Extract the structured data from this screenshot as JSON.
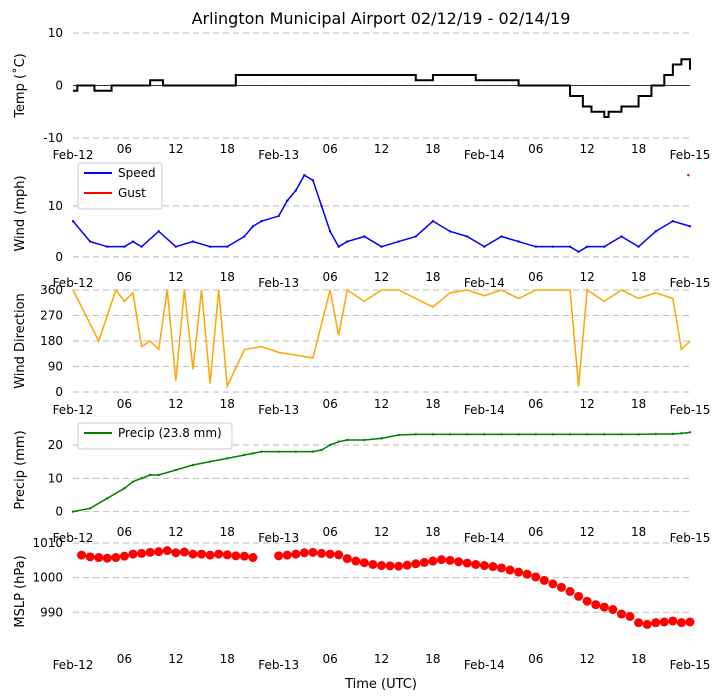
{
  "colors": {
    "temp": "#000000",
    "speed": "#0000ff",
    "gust": "#ff0000",
    "direction": "#ffa500",
    "precip": "#008000",
    "mslp": "#ff0000",
    "grid": "#bbbbbb"
  },
  "chart_data": {
    "title": "Arlington Municipal Airport 02/12/19 - 02/14/19",
    "xlabel": "Time (UTC)",
    "type": "line",
    "x_ticks": [
      "Feb-12",
      "06",
      "12",
      "18",
      "Feb-13",
      "06",
      "12",
      "18",
      "Feb-14",
      "06",
      "12",
      "18",
      "Feb-15"
    ],
    "x_unit": "hours since 2019-02-12 00:00 UTC",
    "x_range": [
      0,
      72
    ],
    "panels": [
      {
        "name": "temp",
        "type": "line",
        "ylabel": "Temp ($^\\circ$C)",
        "ylabel_display": "Temp (˚C)",
        "ylim": [
          -10,
          10
        ],
        "yticks": [
          -10,
          0,
          10
        ],
        "zero_line": true,
        "series": [
          {
            "name": "Temp",
            "x": [
              0,
              0.5,
              2,
              2.5,
              4.5,
              8,
              9,
              10.5,
              16,
              19,
              24,
              28,
              33,
              40,
              42,
              47,
              49,
              52,
              56,
              58,
              59.5,
              60.5,
              61.5,
              62,
              62.5,
              64,
              66,
              67.5,
              69,
              70,
              71,
              72
            ],
            "values": [
              -1,
              0,
              0,
              -1,
              0,
              0,
              1,
              0,
              0,
              2,
              2,
              2,
              2,
              1,
              2,
              1,
              1,
              0,
              0,
              -2,
              -4,
              -5,
              -5,
              -6,
              -5,
              -4,
              -2,
              0,
              2,
              4,
              5,
              3
            ]
          }
        ]
      },
      {
        "name": "wind",
        "type": "line",
        "ylabel": "Wind (mph)",
        "ylim": [
          -1,
          18
        ],
        "yticks": [
          0,
          10
        ],
        "legend": [
          "Speed",
          "Gust"
        ],
        "series": [
          {
            "name": "Speed",
            "x": [
              0,
              2,
              4,
              6,
              7,
              8,
              10,
              12,
              14,
              16,
              18,
              20,
              21,
              22,
              24,
              25,
              26,
              27,
              28,
              29,
              30,
              31,
              32,
              34,
              36,
              38,
              40,
              42,
              44,
              46,
              48,
              50,
              52,
              54,
              56,
              58,
              59,
              60,
              62,
              64,
              66,
              68,
              70,
              72
            ],
            "values": [
              7,
              3,
              2,
              2,
              3,
              2,
              5,
              2,
              3,
              2,
              2,
              4,
              6,
              7,
              8,
              11,
              13,
              16,
              15,
              10,
              5,
              2,
              3,
              4,
              2,
              3,
              4,
              7,
              5,
              4,
              2,
              4,
              3,
              2,
              2,
              2,
              1,
              2,
              2,
              4,
              2,
              5,
              7,
              6
            ]
          },
          {
            "name": "Gust",
            "x": [
              71.8
            ],
            "values": [
              16
            ]
          }
        ]
      },
      {
        "name": "direction",
        "type": "line",
        "ylabel": "Wind Direction",
        "ylim": [
          0,
          360
        ],
        "yticks": [
          0,
          90,
          180,
          270,
          360
        ],
        "series": [
          {
            "name": "Direction",
            "x": [
              0,
              3,
              5,
              6,
              7,
              8,
              9,
              10,
              11,
              12,
              13,
              14,
              15,
              16,
              17,
              18,
              20,
              22,
              24,
              26,
              28,
              30,
              31,
              32,
              34,
              36,
              38,
              40,
              42,
              44,
              46,
              48,
              50,
              52,
              54,
              56,
              58,
              59,
              60,
              62,
              64,
              66,
              68,
              70,
              71,
              72
            ],
            "values": [
              360,
              180,
              360,
              320,
              350,
              160,
              180,
              150,
              360,
              40,
              360,
              80,
              360,
              30,
              360,
              20,
              150,
              160,
              140,
              130,
              120,
              360,
              200,
              360,
              320,
              360,
              360,
              330,
              300,
              350,
              360,
              340,
              360,
              330,
              360,
              360,
              360,
              20,
              360,
              320,
              360,
              330,
              350,
              330,
              150,
              180
            ]
          }
        ]
      },
      {
        "name": "precip",
        "type": "line",
        "ylabel": "Precip (mm)",
        "ylim": [
          -1,
          26
        ],
        "yticks": [
          0,
          10,
          20
        ],
        "legend": [
          "Precip (23.8 mm)"
        ],
        "series": [
          {
            "name": "Precip (23.8 mm)",
            "x": [
              0,
              2,
              4,
              6,
              7,
              8,
              9,
              10,
              12,
              14,
              16,
              18,
              20,
              21,
              22,
              24,
              26,
              28,
              29,
              30,
              31,
              32,
              34,
              36,
              38,
              40,
              42,
              44,
              46,
              48,
              50,
              52,
              54,
              56,
              58,
              60,
              62,
              64,
              66,
              68,
              70,
              71,
              72
            ],
            "values": [
              0,
              1,
              4,
              7,
              9,
              10,
              11,
              11,
              12.5,
              14,
              15,
              16,
              17,
              17.5,
              18,
              18,
              18,
              18,
              18.5,
              20,
              21,
              21.5,
              21.5,
              22,
              23,
              23.2,
              23.2,
              23.2,
              23.2,
              23.2,
              23.2,
              23.2,
              23.2,
              23.2,
              23.2,
              23.2,
              23.2,
              23.2,
              23.2,
              23.3,
              23.3,
              23.5,
              23.8
            ]
          }
        ]
      },
      {
        "name": "mslp",
        "type": "scatter",
        "ylabel": "MSLP (hPa)",
        "ylim": [
          982,
          1010
        ],
        "yticks": [
          990,
          1000,
          1010
        ],
        "series": [
          {
            "name": "MSLP",
            "x": [
              1,
              2,
              3,
              4,
              5,
              6,
              7,
              8,
              9,
              10,
              11,
              12,
              13,
              14,
              15,
              16,
              17,
              18,
              19,
              20,
              21,
              24,
              25,
              26,
              27,
              28,
              29,
              30,
              31,
              32,
              33,
              34,
              35,
              36,
              37,
              38,
              39,
              40,
              41,
              42,
              43,
              44,
              45,
              46,
              47,
              48,
              49,
              50,
              51,
              52,
              53,
              54,
              55,
              56,
              57,
              58,
              59,
              60,
              61,
              62,
              63,
              64,
              65,
              66,
              67,
              68,
              69,
              70,
              71,
              72
            ],
            "values": [
              1006.5,
              1006,
              1005.8,
              1005.6,
              1005.8,
              1006.2,
              1006.8,
              1007,
              1007.3,
              1007.5,
              1007.8,
              1007.2,
              1007.4,
              1006.8,
              1006.8,
              1006.5,
              1006.8,
              1006.6,
              1006.3,
              1006.2,
              1005.8,
              1006.3,
              1006.5,
              1006.8,
              1007.2,
              1007.3,
              1007.0,
              1006.8,
              1006.6,
              1005.5,
              1004.8,
              1004.3,
              1003.8,
              1003.5,
              1003.4,
              1003.3,
              1003.6,
              1004.0,
              1004.4,
              1004.8,
              1005.2,
              1005.0,
              1004.6,
              1004.2,
              1003.8,
              1003.5,
              1003.2,
              1002.8,
              1002.2,
              1001.6,
              1001.0,
              1000.2,
              999.2,
              998.2,
              997.2,
              996.0,
              994.6,
              993.2,
              992.2,
              991.5,
              990.8,
              989.5,
              988.8,
              987.0,
              986.5,
              987.0,
              987.2,
              987.5,
              987.0,
              987.2
            ]
          }
        ]
      }
    ]
  }
}
